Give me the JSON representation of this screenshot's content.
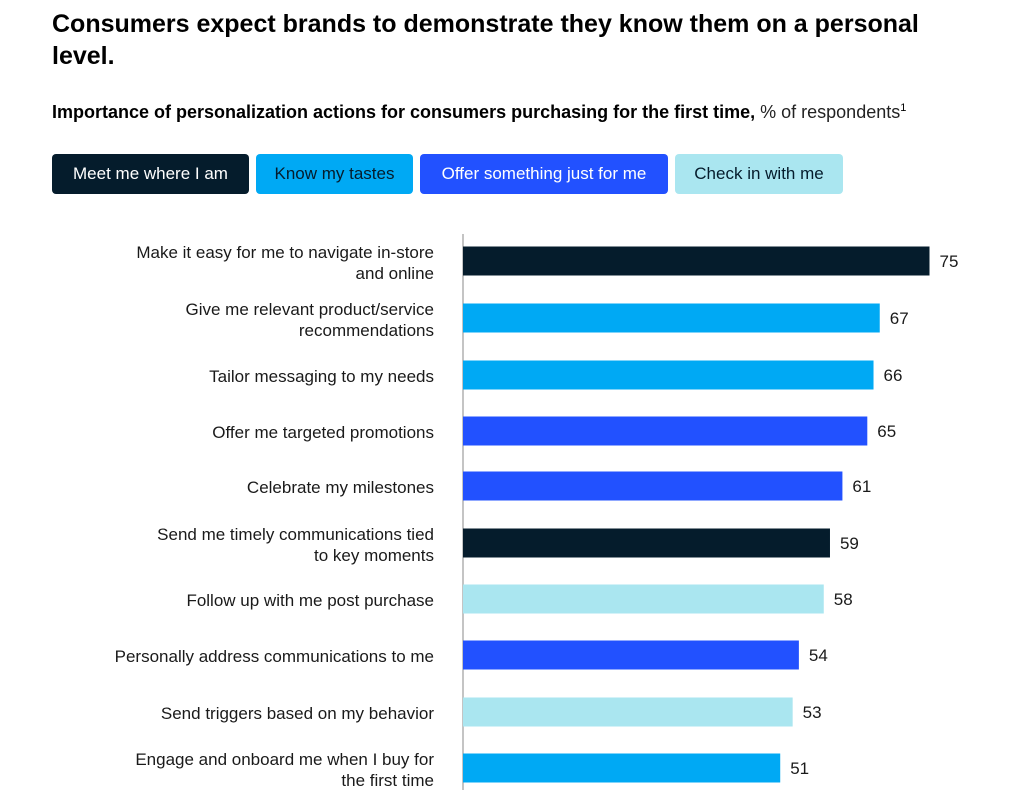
{
  "title": "Consumers expect brands to demonstrate they know them on a personal level.",
  "subtitle_bold": "Importance of personalization actions for consumers purchasing for the first time,",
  "subtitle_light": "% of respondents",
  "subtitle_footnote": "1",
  "legend": [
    {
      "label": "Meet me where I am",
      "bg": "#051c2c",
      "fg": "#ffffff"
    },
    {
      "label": "Know my tastes",
      "bg": "#00a9f4",
      "fg": "#051c2c"
    },
    {
      "label": "Offer something just for me",
      "bg": "#2251ff",
      "fg": "#ffffff"
    },
    {
      "label": "Check in with me",
      "bg": "#aae6f0",
      "fg": "#051c2c"
    }
  ],
  "chart_data": {
    "type": "bar",
    "orientation": "horizontal",
    "categories": [
      [
        "Make it easy for me to navigate in-store",
        "and online"
      ],
      [
        "Give me relevant product/service",
        "recommendations"
      ],
      [
        "Tailor messaging to my needs"
      ],
      [
        "Offer me targeted promotions"
      ],
      [
        "Celebrate my milestones"
      ],
      [
        "Send me timely communications tied",
        "to key moments"
      ],
      [
        "Follow up with me post purchase"
      ],
      [
        "Personally address communications to me"
      ],
      [
        "Send triggers based on my behavior"
      ],
      [
        "Engage and onboard me when I buy for",
        "the first time"
      ]
    ],
    "values": [
      75,
      67,
      66,
      65,
      61,
      59,
      58,
      54,
      53,
      51
    ],
    "groups": [
      "Meet me where I am",
      "Know my tastes",
      "Know my tastes",
      "Offer something just for me",
      "Offer something just for me",
      "Meet me where I am",
      "Check in with me",
      "Offer something just for me",
      "Check in with me",
      "Know my tastes"
    ],
    "xlim": [
      0,
      100
    ],
    "colors": {
      "Meet me where I am": "#051c2c",
      "Know my tastes": "#00a9f4",
      "Offer something just for me": "#2251ff",
      "Check in with me": "#aae6f0"
    }
  }
}
